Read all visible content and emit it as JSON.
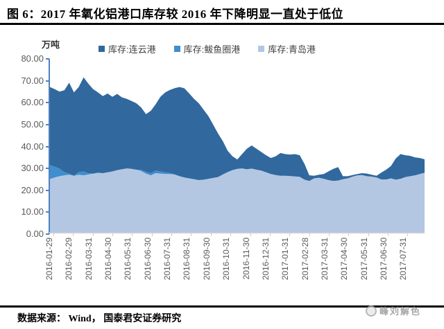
{
  "page": {
    "title": "图 6：2017 年氧化铝港口库存较 2016 年下降明显一直处于低位",
    "source": "数据来源： Wind， 国泰君安证券研究",
    "watermark": "峰刘解色"
  },
  "chart_data": {
    "type": "area",
    "stacked": true,
    "unit_label": "万吨",
    "grid": false,
    "legend_position": "top",
    "ylim": [
      0,
      80
    ],
    "y_tick_labels": [
      "0.00",
      "10.00",
      "20.00",
      "30.00",
      "40.00",
      "50.00",
      "60.00",
      "70.00",
      "80.00"
    ],
    "x_tick_labels": [
      "2016-01-29",
      "2016-02-29",
      "2016-03-31",
      "2016-04-30",
      "2016-05-31",
      "2016-06-30",
      "2016-07-31",
      "2016-08-31",
      "2016-09-30",
      "2016-10-31",
      "2016-11-30",
      "2016-12-31",
      "2017-01-31",
      "2017-02-28",
      "2017-03-31",
      "2017-04-30",
      "2017-05-31",
      "2017-06-30",
      "2017-07-31"
    ],
    "x_frequency": "weekly from 2016-01-29 to 2017-07-31",
    "colors": {
      "y_axis": "#4f81bd",
      "x_axis": "#c8ccd8",
      "tick_label": "#595959"
    },
    "series": [
      {
        "name": "库存:连云港",
        "color": "#31689e",
        "stack_index": 2,
        "values": [
          36.0,
          35.8,
          35.6,
          37.8,
          42.0,
          38.5,
          39.3,
          43.5,
          41.3,
          39.0,
          37.1,
          35.6,
          36.4,
          34.5,
          35.2,
          33.2,
          32.1,
          31.3,
          30.7,
          28.8,
          26.7,
          28.8,
          30.6,
          34.5,
          36.9,
          38.4,
          39.9,
          41.2,
          41.2,
          39.2,
          37.1,
          35.5,
          32.3,
          28.9,
          24.5,
          20.1,
          15.4,
          9.8,
          6.4,
          4.3,
          6.6,
          9.5,
          10.7,
          9.7,
          8.6,
          7.9,
          7.4,
          8.7,
          10.5,
          10.0,
          9.9,
          10.3,
          10.0,
          7.3,
          2.6,
          1.2,
          1.4,
          2.2,
          4.0,
          5.6,
          6.2,
          1.4,
          1.0,
          0.7,
          0.6,
          0.9,
          1.2,
          0.9,
          0.8,
          3.2,
          4.5,
          5.7,
          9.8,
          11.4,
          10.1,
          9.4,
          8.3,
          7.4,
          6.2
        ]
      },
      {
        "name": "库存:鲅鱼圈港",
        "color": "#3f8ecd",
        "stack_index": 1,
        "values": [
          6.5,
          5.0,
          3.5,
          1.5,
          0.5,
          0,
          1.2,
          1.8,
          0.6,
          0,
          0,
          0,
          0,
          0,
          0,
          0,
          0,
          0,
          0,
          0.5,
          0.8,
          1.0,
          1.2,
          1.0,
          0.8,
          0.5,
          0,
          0,
          0,
          0,
          0,
          0,
          0,
          0,
          0,
          0,
          0,
          0,
          0,
          0,
          0,
          0,
          0,
          0,
          0,
          0,
          0,
          0,
          0,
          0,
          0,
          0,
          0,
          0,
          0,
          0,
          0,
          0,
          0,
          0,
          0,
          0,
          0,
          0,
          0,
          0,
          0,
          0,
          0,
          0,
          0,
          0,
          0,
          0,
          0,
          0,
          0,
          0,
          0
        ]
      },
      {
        "name": "库存:青岛港",
        "color": "#b3c7e3",
        "stack_index": 0,
        "values": [
          24.5,
          25.2,
          25.8,
          26.2,
          26.5,
          26.0,
          26.5,
          26.2,
          26.6,
          27.0,
          27.4,
          27.2,
          27.6,
          28.0,
          28.6,
          29.0,
          29.4,
          29.2,
          28.8,
          28.2,
          27.0,
          26.2,
          27.2,
          27.0,
          26.8,
          26.8,
          26.6,
          25.8,
          25.2,
          24.8,
          24.4,
          24.0,
          24.2,
          24.6,
          25.0,
          25.4,
          26.6,
          27.7,
          28.6,
          29.2,
          29.4,
          29.0,
          29.3,
          28.8,
          28.4,
          27.6,
          26.8,
          26.3,
          26.0,
          26.0,
          25.9,
          25.7,
          25.5,
          24.2,
          23.6,
          24.8,
          25.1,
          24.6,
          24.0,
          23.6,
          23.8,
          24.4,
          24.8,
          25.6,
          26.2,
          26.3,
          25.8,
          25.6,
          25.2,
          24.3,
          24.3,
          24.8,
          24.2,
          24.6,
          25.4,
          25.8,
          26.2,
          26.8,
          27.4
        ]
      }
    ]
  }
}
